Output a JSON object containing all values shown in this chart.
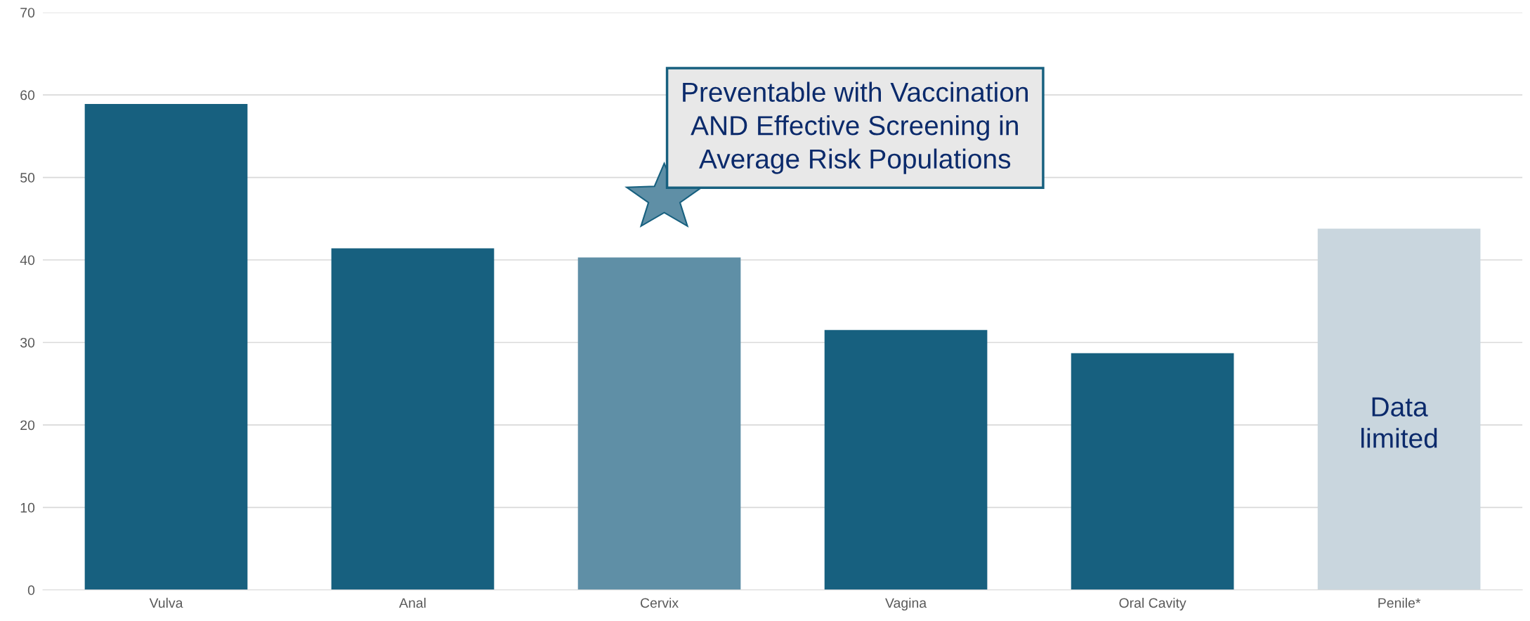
{
  "chart_data": {
    "type": "bar",
    "categories": [
      "Vulva",
      "Anal",
      "Cervix",
      "Vagina",
      "Oral Cavity",
      "Penile*"
    ],
    "values": [
      58.9,
      41.4,
      40.3,
      31.5,
      28.7,
      43.8
    ],
    "colors": [
      "#17607f",
      "#17607f",
      "#5f8fa6",
      "#17607f",
      "#17607f",
      "#c9d6de"
    ],
    "ylim": [
      0,
      70
    ],
    "yticks": [
      0,
      10,
      20,
      30,
      40,
      50,
      60,
      70
    ],
    "grid": "y",
    "annotations": [
      "Preventable with Vaccination AND Effective Screening in Average Risk Populations",
      "Data limited"
    ]
  }
}
